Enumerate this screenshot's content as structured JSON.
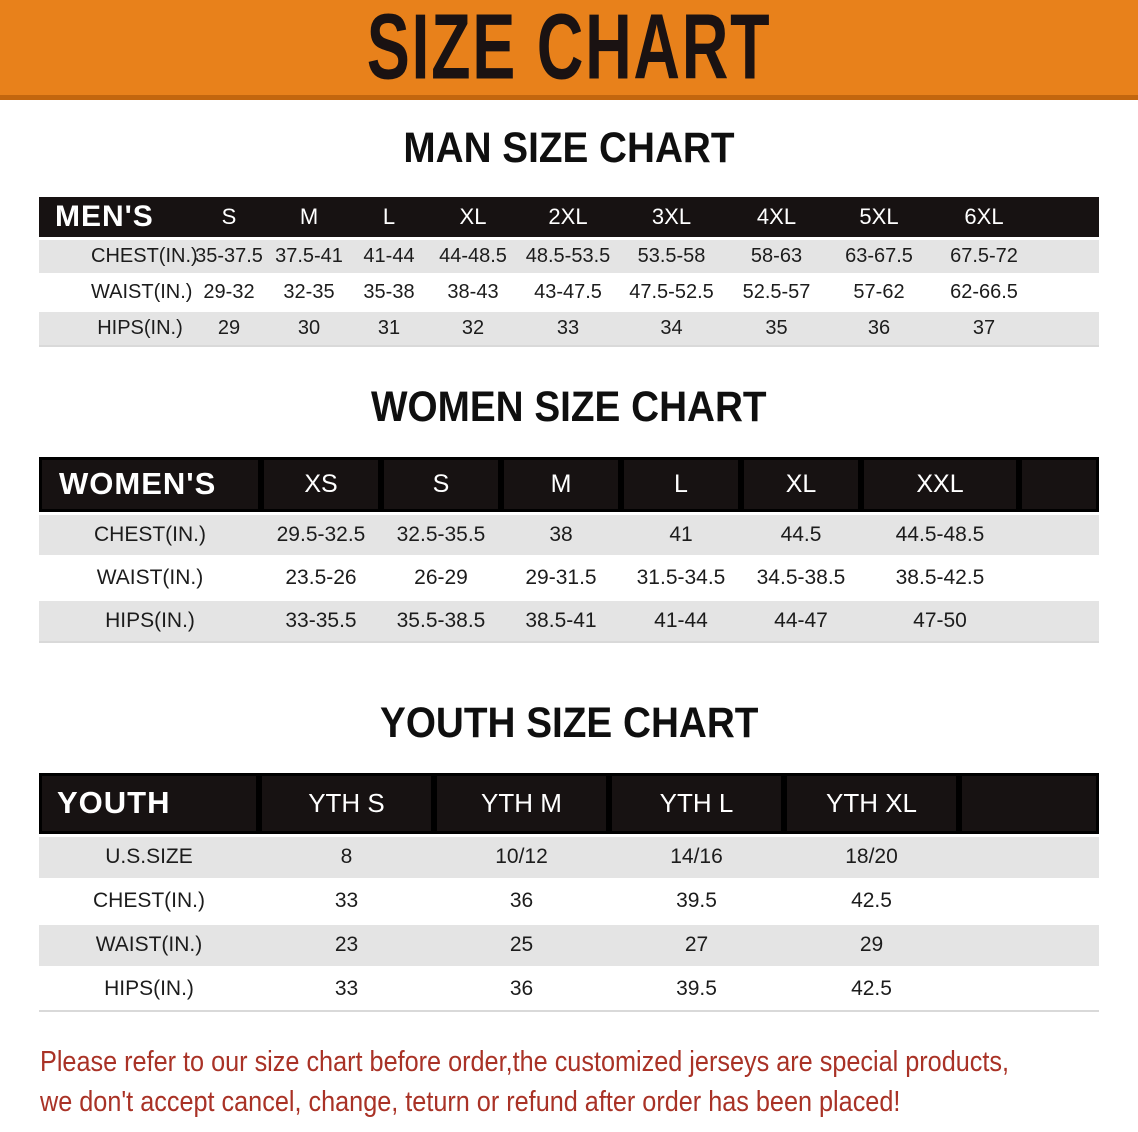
{
  "banner": {
    "title": "SIZE CHART",
    "bg_color": "#e8811b"
  },
  "sections": [
    {
      "heading": "MAN SIZE CHART",
      "header_label": "MEN'S",
      "columns": [
        "S",
        "M",
        "L",
        "XL",
        "2XL",
        "3XL",
        "4XL",
        "5XL",
        "6XL"
      ],
      "rows": [
        {
          "label": "CHEST(IN.)",
          "values": [
            "35-37.5",
            "37.5-41",
            "41-44",
            "44-48.5",
            "48.5-53.5",
            "53.5-58",
            "58-63",
            "63-67.5",
            "67.5-72"
          ]
        },
        {
          "label": "WAIST(IN.)",
          "values": [
            "29-32",
            "32-35",
            "35-38",
            "38-43",
            "43-47.5",
            "47.5-52.5",
            "52.5-57",
            "57-62",
            "62-66.5"
          ]
        },
        {
          "label": "HIPS(IN.)",
          "values": [
            "29",
            "30",
            "31",
            "32",
            "33",
            "34",
            "35",
            "36",
            "37"
          ]
        }
      ]
    },
    {
      "heading": "WOMEN SIZE CHART",
      "header_label": "WOMEN'S",
      "columns": [
        "XS",
        "S",
        "M",
        "L",
        "XL",
        "XXL"
      ],
      "rows": [
        {
          "label": "CHEST(IN.)",
          "values": [
            "29.5-32.5",
            "32.5-35.5",
            "38",
            "41",
            "44.5",
            "44.5-48.5"
          ]
        },
        {
          "label": "WAIST(IN.)",
          "values": [
            "23.5-26",
            "26-29",
            "29-31.5",
            "31.5-34.5",
            "34.5-38.5",
            "38.5-42.5"
          ]
        },
        {
          "label": "HIPS(IN.)",
          "values": [
            "33-35.5",
            "35.5-38.5",
            "38.5-41",
            "41-44",
            "44-47",
            "47-50"
          ]
        }
      ]
    },
    {
      "heading": "YOUTH SIZE CHART",
      "header_label": "YOUTH",
      "columns": [
        "YTH S",
        "YTH M",
        "YTH L",
        "YTH XL"
      ],
      "rows": [
        {
          "label": "U.S.SIZE",
          "values": [
            "8",
            "10/12",
            "14/16",
            "18/20"
          ]
        },
        {
          "label": "CHEST(IN.)",
          "values": [
            "33",
            "36",
            "39.5",
            "42.5"
          ]
        },
        {
          "label": "WAIST(IN.)",
          "values": [
            "23",
            "25",
            "27",
            "29"
          ]
        },
        {
          "label": "HIPS(IN.)",
          "values": [
            "33",
            "36",
            "39.5",
            "42.5"
          ]
        }
      ]
    }
  ],
  "footer": {
    "line1": "Please refer to our size chart before order,the customized jerseys are special products,",
    "line2": "we don't accept cancel, change, teturn or refund after order has been placed!",
    "text_color": "#a93226"
  }
}
